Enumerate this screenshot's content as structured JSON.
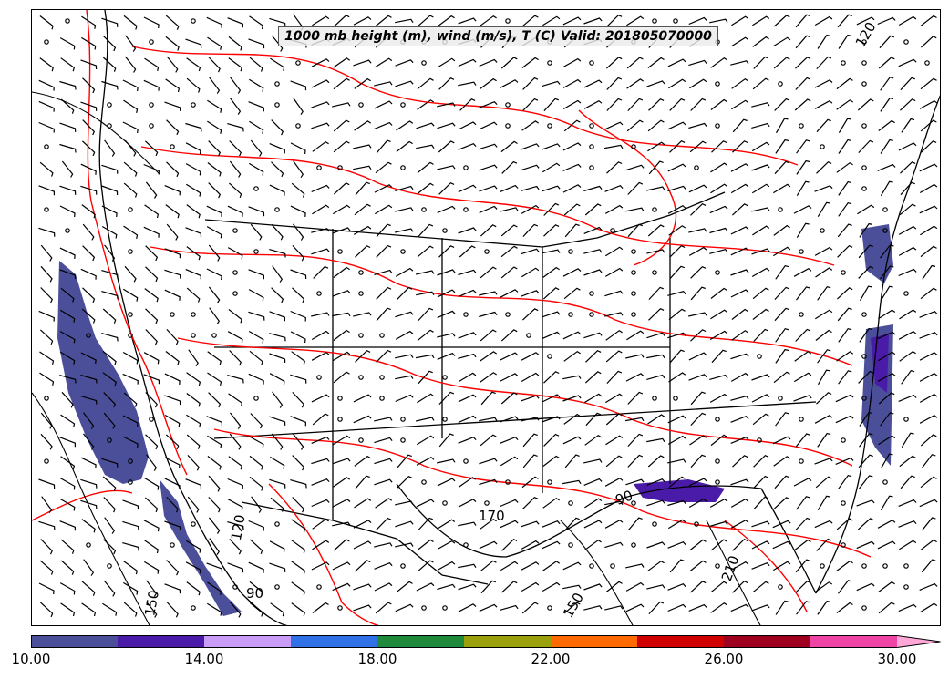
{
  "title": "1000 mb height (m), wind (m/s), T (C) Valid: 201805070000",
  "colorbar": {
    "min": 10,
    "max": 31,
    "colors": [
      "#4b4f9a",
      "#4a1aa8",
      "#c99cf7",
      "#3071e8",
      "#1f8a3c",
      "#9aa10c",
      "#ff6a00",
      "#d10000",
      "#a00020",
      "#ef44a5",
      "#ffa8d8"
    ],
    "tick_labels": [
      "10.00",
      "14.00",
      "18.00",
      "22.00",
      "26.00",
      "30.00"
    ]
  },
  "contour_labels": [
    "170",
    "150",
    "120",
    "210",
    "90",
    "120",
    "150",
    "90"
  ],
  "colors": {
    "temperature_contour": "#ff0000",
    "height_contour": "#000000",
    "boundaries": "#000000"
  }
}
